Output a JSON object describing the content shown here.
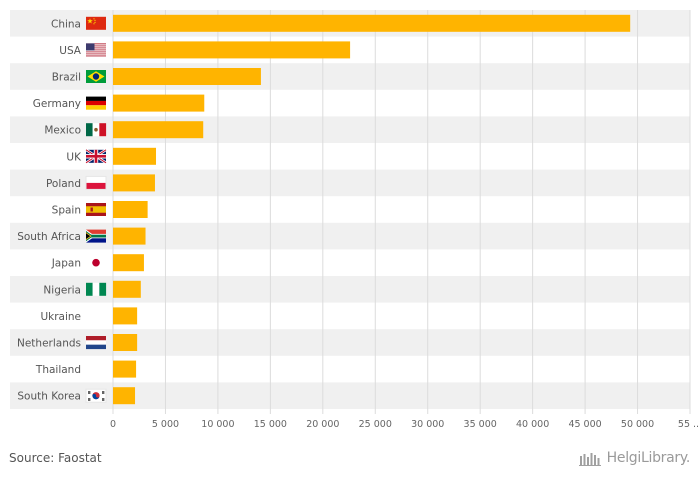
{
  "chart_data": {
    "type": "bar",
    "orientation": "horizontal",
    "categories": [
      "China",
      "USA",
      "Brazil",
      "Germany",
      "Mexico",
      "UK",
      "Poland",
      "Spain",
      "South Africa",
      "Japan",
      "Nigeria",
      "Ukraine",
      "Netherlands",
      "Thailand",
      "South Korea"
    ],
    "values": [
      49300,
      22600,
      14100,
      8700,
      8600,
      4100,
      4000,
      3300,
      3100,
      2950,
      2650,
      2300,
      2300,
      2200,
      2100
    ],
    "x_ticks": [
      "0",
      "5 000",
      "10 000",
      "15 000",
      "20 000",
      "25 000",
      "30 000",
      "35 000",
      "40 000",
      "45 000",
      "50 000",
      "55 ..."
    ],
    "xlim": [
      0,
      55000
    ],
    "bar_color": "#FFB400",
    "title": "",
    "xlabel": "",
    "ylabel": ""
  },
  "flags": [
    "china-flag-icon",
    "usa-flag-icon",
    "brazil-flag-icon",
    "germany-flag-icon",
    "mexico-flag-icon",
    "uk-flag-icon",
    "poland-flag-icon",
    "spain-flag-icon",
    "south-africa-flag-icon",
    "japan-flag-icon",
    "nigeria-flag-icon",
    "",
    "netherlands-flag-icon",
    "",
    "south-korea-flag-icon"
  ],
  "source": "Source: Faostat",
  "logo": {
    "name": "HelgiLibrary."
  }
}
